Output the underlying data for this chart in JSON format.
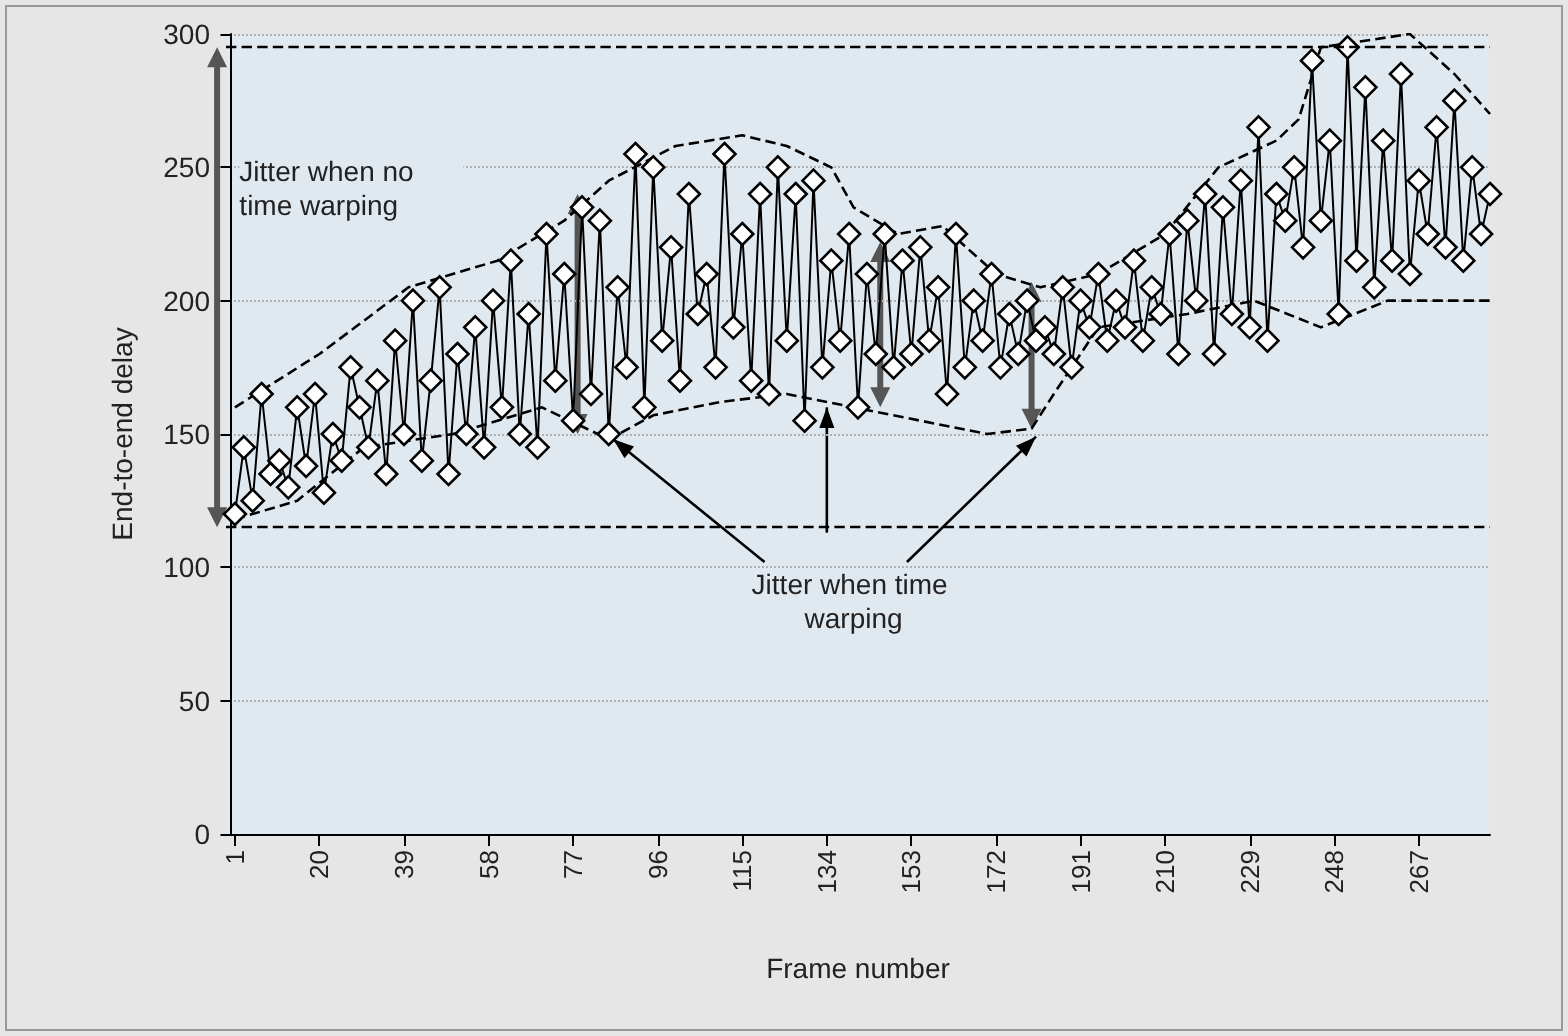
{
  "chart_data": {
    "type": "line",
    "xlabel": "Frame number",
    "ylabel": "End-to-end delay",
    "xlim": [
      -1,
      283
    ],
    "xticks": [
      1,
      20,
      39,
      58,
      77,
      96,
      115,
      134,
      153,
      172,
      191,
      210,
      229,
      248,
      267
    ],
    "ylim": [
      0,
      300
    ],
    "yticks": [
      0,
      50,
      100,
      150,
      200,
      250,
      300
    ],
    "grid": "y",
    "annotations": [
      "Jitter when no time warping",
      {
        "text": "Jitter when time warping",
        "x": 134,
        "y": 160
      }
    ],
    "ref_lines": [
      {
        "axis": "y",
        "value": 295,
        "color": "#000000",
        "line_style": "dashed"
      },
      {
        "axis": "y",
        "value": 115,
        "color": "#000000",
        "line_style": "dashed"
      }
    ],
    "series": [
      {
        "color": "#000000",
        "marker": "diamond",
        "line_style": "solid",
        "x": [
          1,
          3,
          5,
          7,
          9,
          11,
          13,
          15,
          17,
          19,
          21,
          23,
          25,
          27,
          29,
          31,
          33,
          35,
          37,
          39,
          41,
          43,
          45,
          47,
          49,
          51,
          53,
          55,
          57,
          59,
          61,
          63,
          65,
          67,
          69,
          71,
          73,
          75,
          77,
          79,
          81,
          83,
          85,
          87,
          89,
          91,
          93,
          95,
          97,
          99,
          101,
          103,
          105,
          107,
          109,
          111,
          113,
          115,
          117,
          119,
          121,
          123,
          125,
          127,
          129,
          131,
          133,
          135,
          137,
          139,
          141,
          143,
          145,
          147,
          149,
          151,
          153,
          155,
          157,
          159,
          161,
          163,
          165,
          167,
          169,
          171,
          173,
          175,
          177,
          179,
          181,
          183,
          185,
          187,
          189,
          191,
          193,
          195,
          197,
          199,
          201,
          203,
          205,
          207,
          209,
          211,
          213,
          215,
          217,
          219,
          221,
          223,
          225,
          227,
          229,
          231,
          233,
          235,
          237,
          239,
          241,
          243,
          245,
          247,
          249,
          251,
          253,
          255,
          257,
          259,
          261,
          263,
          265,
          267,
          269,
          271,
          273,
          275,
          277,
          279,
          281,
          283
        ],
        "values": [
          120,
          145,
          125,
          165,
          135,
          140,
          130,
          160,
          138,
          165,
          128,
          150,
          140,
          175,
          160,
          145,
          170,
          135,
          185,
          150,
          200,
          140,
          170,
          205,
          135,
          180,
          150,
          190,
          145,
          200,
          160,
          215,
          150,
          195,
          145,
          225,
          170,
          210,
          155,
          235,
          165,
          230,
          150,
          205,
          175,
          255,
          160,
          250,
          185,
          220,
          170,
          240,
          195,
          210,
          175,
          255,
          190,
          225,
          170,
          240,
          165,
          250,
          185,
          240,
          155,
          245,
          175,
          215,
          185,
          225,
          160,
          210,
          180,
          225,
          175,
          215,
          180,
          220,
          185,
          205,
          165,
          225,
          175,
          200,
          185,
          210,
          175,
          195,
          180,
          200,
          185,
          190,
          180,
          205,
          175,
          200,
          190,
          210,
          185,
          200,
          190,
          215,
          185,
          205,
          195,
          225,
          180,
          230,
          200,
          240,
          180,
          235,
          195,
          245,
          190,
          265,
          185,
          240,
          230,
          250,
          220,
          290,
          230,
          260,
          195,
          295,
          215,
          280,
          205,
          260,
          215,
          285,
          210,
          245,
          225,
          265,
          220,
          275,
          215,
          250,
          225,
          240
        ]
      },
      {
        "color": "#000000",
        "marker": "none",
        "line_style": "dashed",
        "x": [
          1,
          20,
          40,
          60,
          75,
          85,
          100,
          115,
          125,
          135,
          140,
          150,
          160,
          172,
          182,
          195,
          210,
          222,
          235,
          240,
          245,
          265,
          275,
          283
        ],
        "values": [
          160,
          180,
          205,
          215,
          230,
          245,
          258,
          262,
          258,
          250,
          235,
          225,
          228,
          210,
          205,
          210,
          225,
          250,
          260,
          268,
          295,
          300,
          285,
          270
        ]
      },
      {
        "color": "#000000",
        "marker": "none",
        "line_style": "dashed",
        "x": [
          1,
          15,
          30,
          50,
          70,
          85,
          95,
          110,
          125,
          140,
          155,
          170,
          180,
          185,
          195,
          215,
          230,
          245,
          260,
          283
        ],
        "values": [
          118,
          125,
          145,
          150,
          160,
          148,
          157,
          162,
          165,
          160,
          155,
          150,
          152,
          165,
          190,
          195,
          200,
          190,
          200,
          200
        ]
      }
    ]
  }
}
